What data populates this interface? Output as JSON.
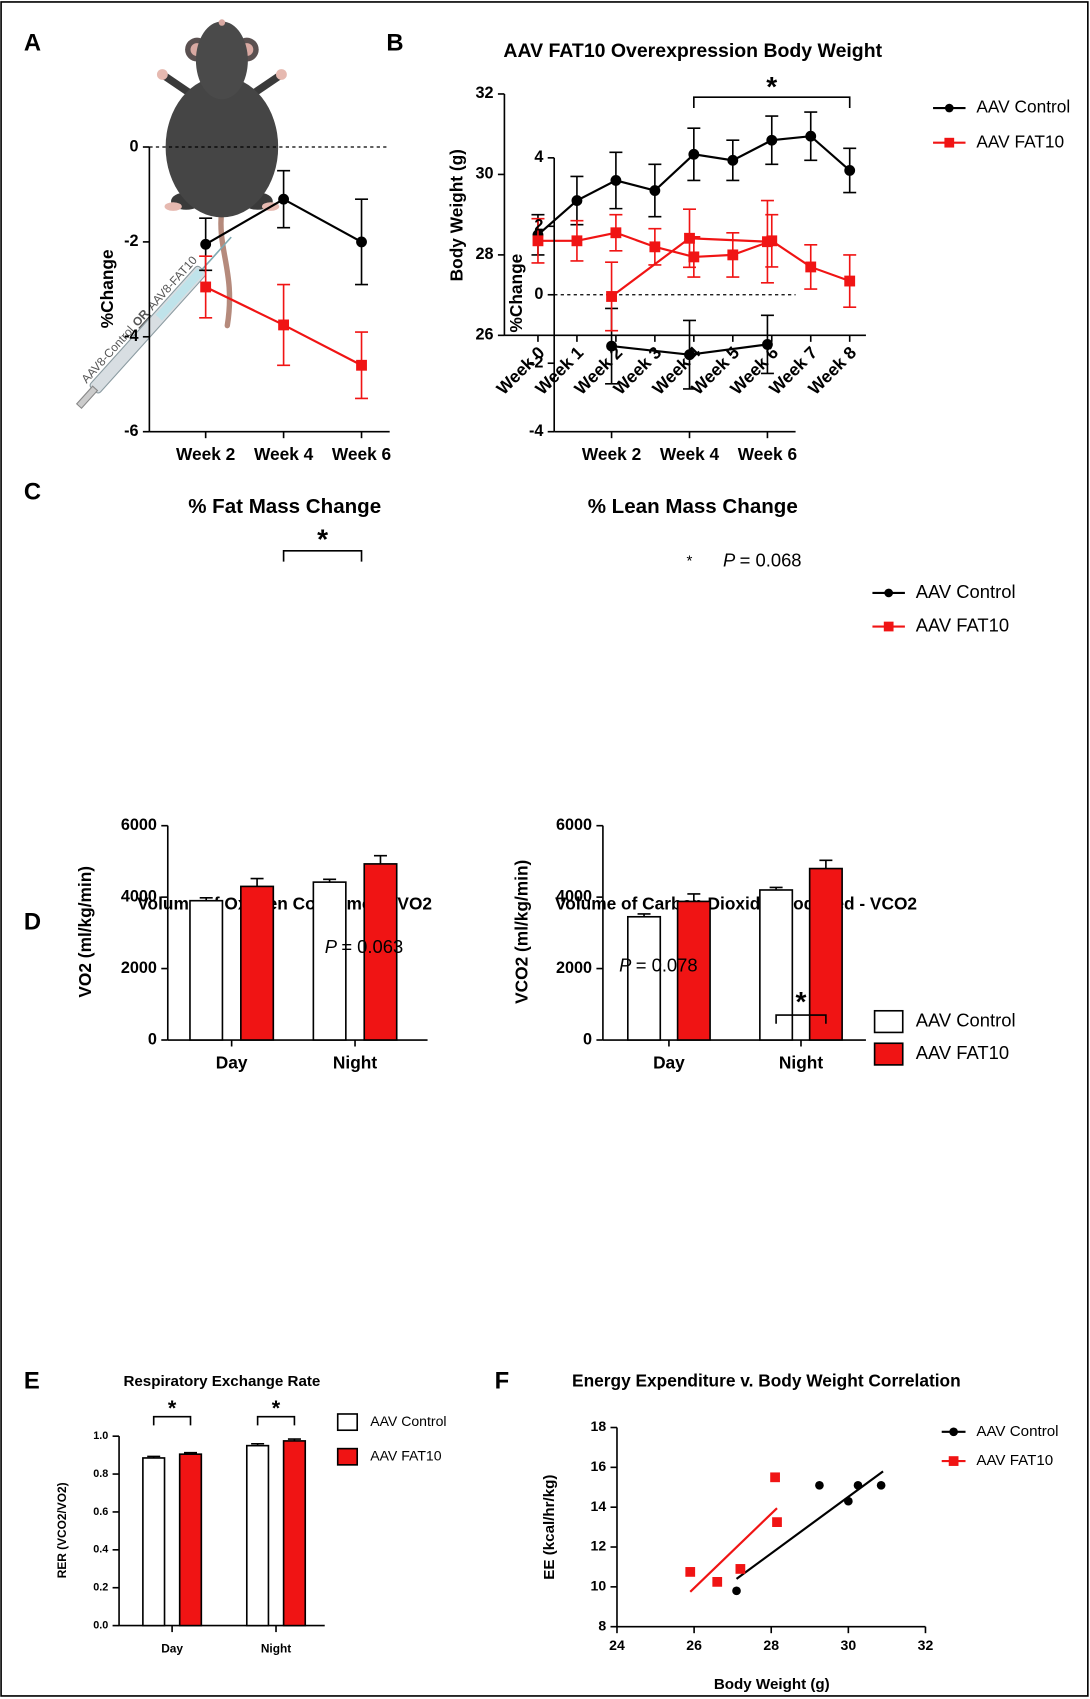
{
  "panel_labels": [
    "A",
    "B",
    "C",
    "D",
    "E",
    "F"
  ],
  "illustration": {
    "label_parts": [
      "AAV8-Control",
      "OR",
      "AAV8-FAT10"
    ]
  },
  "chart_data": [
    {
      "type": "line",
      "title": "AAV FAT10 Overexpression Body Weight",
      "y_label": "Body Weight (g)",
      "categories": [
        "Week 0",
        "Week 1",
        "Week 2",
        "Week 3",
        "Week 4",
        "Week 5",
        "Week 6",
        "Week 7",
        "Week 8"
      ],
      "rotate_categories": true,
      "ylim": [
        26,
        32
      ],
      "yticks": [
        26,
        28,
        30,
        32
      ],
      "legend": "right",
      "series": [
        {
          "name": "AAV Control",
          "color": "#000000",
          "marker": "circle",
          "values": [
            28.5,
            29.35,
            29.85,
            29.6,
            30.5,
            30.35,
            30.85,
            30.95,
            30.1
          ],
          "errors": [
            0.5,
            0.6,
            0.7,
            0.65,
            0.65,
            0.5,
            0.6,
            0.6,
            0.55
          ]
        },
        {
          "name": "AAV FAT10",
          "color": "#f01414",
          "marker": "square",
          "values": [
            28.35,
            28.35,
            28.55,
            28.2,
            27.95,
            28.0,
            28.35,
            27.7,
            27.35
          ],
          "errors": [
            0.55,
            0.5,
            0.45,
            0.45,
            0.5,
            0.55,
            0.65,
            0.55,
            0.65
          ]
        }
      ],
      "significance": [
        {
          "from": 4,
          "to": 8,
          "label": "*"
        }
      ]
    },
    {
      "type": "line",
      "title": "% Fat Mass Change",
      "y_label": "%Change",
      "categories": [
        "Week 2",
        "Week 4",
        "Week 6"
      ],
      "ylim": [
        -6,
        0
      ],
      "yticks": [
        -6,
        -4,
        -2,
        0
      ],
      "zero_line": true,
      "series": [
        {
          "color": "#000000",
          "marker": "circle",
          "values": [
            -2.05,
            -1.1,
            -2.0
          ],
          "errors": [
            0.55,
            0.6,
            0.9
          ]
        },
        {
          "color": "#f01414",
          "marker": "square",
          "values": [
            -2.95,
            -3.75,
            -4.6
          ],
          "errors": [
            0.65,
            0.85,
            0.7
          ]
        }
      ],
      "significance": [
        {
          "from": 1,
          "to": 2,
          "label": "*"
        }
      ]
    },
    {
      "type": "line",
      "title": "% Lean Mass Change",
      "y_label": "%Change",
      "categories": [
        "Week 2",
        "Week 4",
        "Week 6"
      ],
      "ylim": [
        -4,
        4
      ],
      "yticks": [
        -4,
        -2,
        0,
        2,
        4
      ],
      "zero_line": true,
      "legend": "right",
      "series": [
        {
          "name": "AAV Control",
          "color": "#000000",
          "marker": "circle",
          "values": [
            -1.5,
            -1.75,
            -1.45
          ],
          "errors": [
            1.1,
            1.0,
            0.85
          ]
        },
        {
          "name": "AAV FAT10",
          "color": "#f01414",
          "marker": "square",
          "values": [
            -0.05,
            1.65,
            1.55
          ],
          "errors": [
            1.0,
            0.85,
            1.2
          ]
        }
      ],
      "annotations": [
        {
          "mark": "*",
          "italic": "P",
          "text": "= 0.068"
        }
      ]
    },
    {
      "type": "bar",
      "title": "Volume of Oxygen Consumed - VO2",
      "y_label": "VO2 (ml/kg/min)",
      "categories": [
        "Day",
        "Night"
      ],
      "ylim": [
        0,
        6000
      ],
      "yticks": [
        0,
        2000,
        4000,
        6000
      ],
      "series": [
        {
          "color": "#ffffff",
          "values": [
            3900,
            4420
          ],
          "errors": [
            80,
            80
          ]
        },
        {
          "color": "#f01414",
          "values": [
            4300,
            4930
          ],
          "errors": [
            220,
            230
          ]
        }
      ],
      "annotations": [
        {
          "italic": "P",
          "text": "= 0.063"
        }
      ]
    },
    {
      "type": "bar",
      "title": "Volume of Carbon Dioxide Produced - VCO2",
      "y_label": "VCO2 (ml/kg/min)",
      "categories": [
        "Day",
        "Night"
      ],
      "ylim": [
        0,
        6000
      ],
      "yticks": [
        0,
        2000,
        4000,
        6000
      ],
      "legend": "right",
      "series": [
        {
          "name": "AAV Control",
          "color": "#ffffff",
          "values": [
            3450,
            4200
          ],
          "errors": [
            80,
            70
          ]
        },
        {
          "name": "AAV FAT10",
          "color": "#f01414",
          "values": [
            3880,
            4800
          ],
          "errors": [
            210,
            230
          ]
        }
      ],
      "annotations": [
        {
          "italic": "P",
          "text": "= 0.078"
        }
      ],
      "significance": [
        {
          "category": 1,
          "label": "*"
        }
      ]
    },
    {
      "type": "bar",
      "title": "Respiratory Exchange Rate",
      "y_label": "RER (VCO2/VO2)",
      "categories": [
        "Day",
        "Night"
      ],
      "ylim": [
        0,
        1
      ],
      "yticks": [
        {
          "value": 0,
          "label": "0.0"
        },
        0.2,
        0.4,
        0.6,
        0.8,
        {
          "value": 1,
          "label": "1.0"
        }
      ],
      "legend": "right",
      "series": [
        {
          "name": "AAV Control",
          "color": "#ffffff",
          "values": [
            0.885,
            0.95
          ],
          "errors": [
            0.008,
            0.01
          ]
        },
        {
          "name": "AAV FAT10",
          "color": "#f01414",
          "values": [
            0.905,
            0.975
          ],
          "errors": [
            0.008,
            0.01
          ]
        }
      ],
      "significance": [
        {
          "category": 0,
          "label": "*"
        },
        {
          "category": 1,
          "label": "*"
        }
      ]
    },
    {
      "type": "scatter",
      "title": "Energy Expenditure v. Body Weight Correlation",
      "x_label": "Body Weight (g)",
      "y_label": "EE (kcal/hr/kg)",
      "xlim": [
        24,
        32
      ],
      "xticks": [
        24,
        26,
        28,
        30,
        32
      ],
      "ylim": [
        8,
        18
      ],
      "yticks": [
        8,
        10,
        12,
        14,
        16,
        18
      ],
      "legend": "right",
      "series": [
        {
          "name": "AAV Control",
          "color": "#000000",
          "marker": "circle",
          "x": [
            27.1,
            29.25,
            30.0,
            30.25,
            30.85
          ],
          "values": [
            9.8,
            15.1,
            14.3,
            15.1,
            15.1
          ],
          "fit": {
            "x": [
              27.1,
              30.9
            ],
            "y": [
              10.4,
              15.8
            ]
          }
        },
        {
          "name": "AAV FAT10",
          "color": "#f01414",
          "marker": "square",
          "x": [
            25.9,
            26.6,
            27.2,
            28.1,
            28.15
          ],
          "values": [
            10.75,
            10.25,
            10.9,
            15.5,
            13.25
          ],
          "fit": {
            "x": [
              25.9,
              28.15
            ],
            "y": [
              9.75,
              13.95
            ]
          }
        }
      ]
    }
  ]
}
